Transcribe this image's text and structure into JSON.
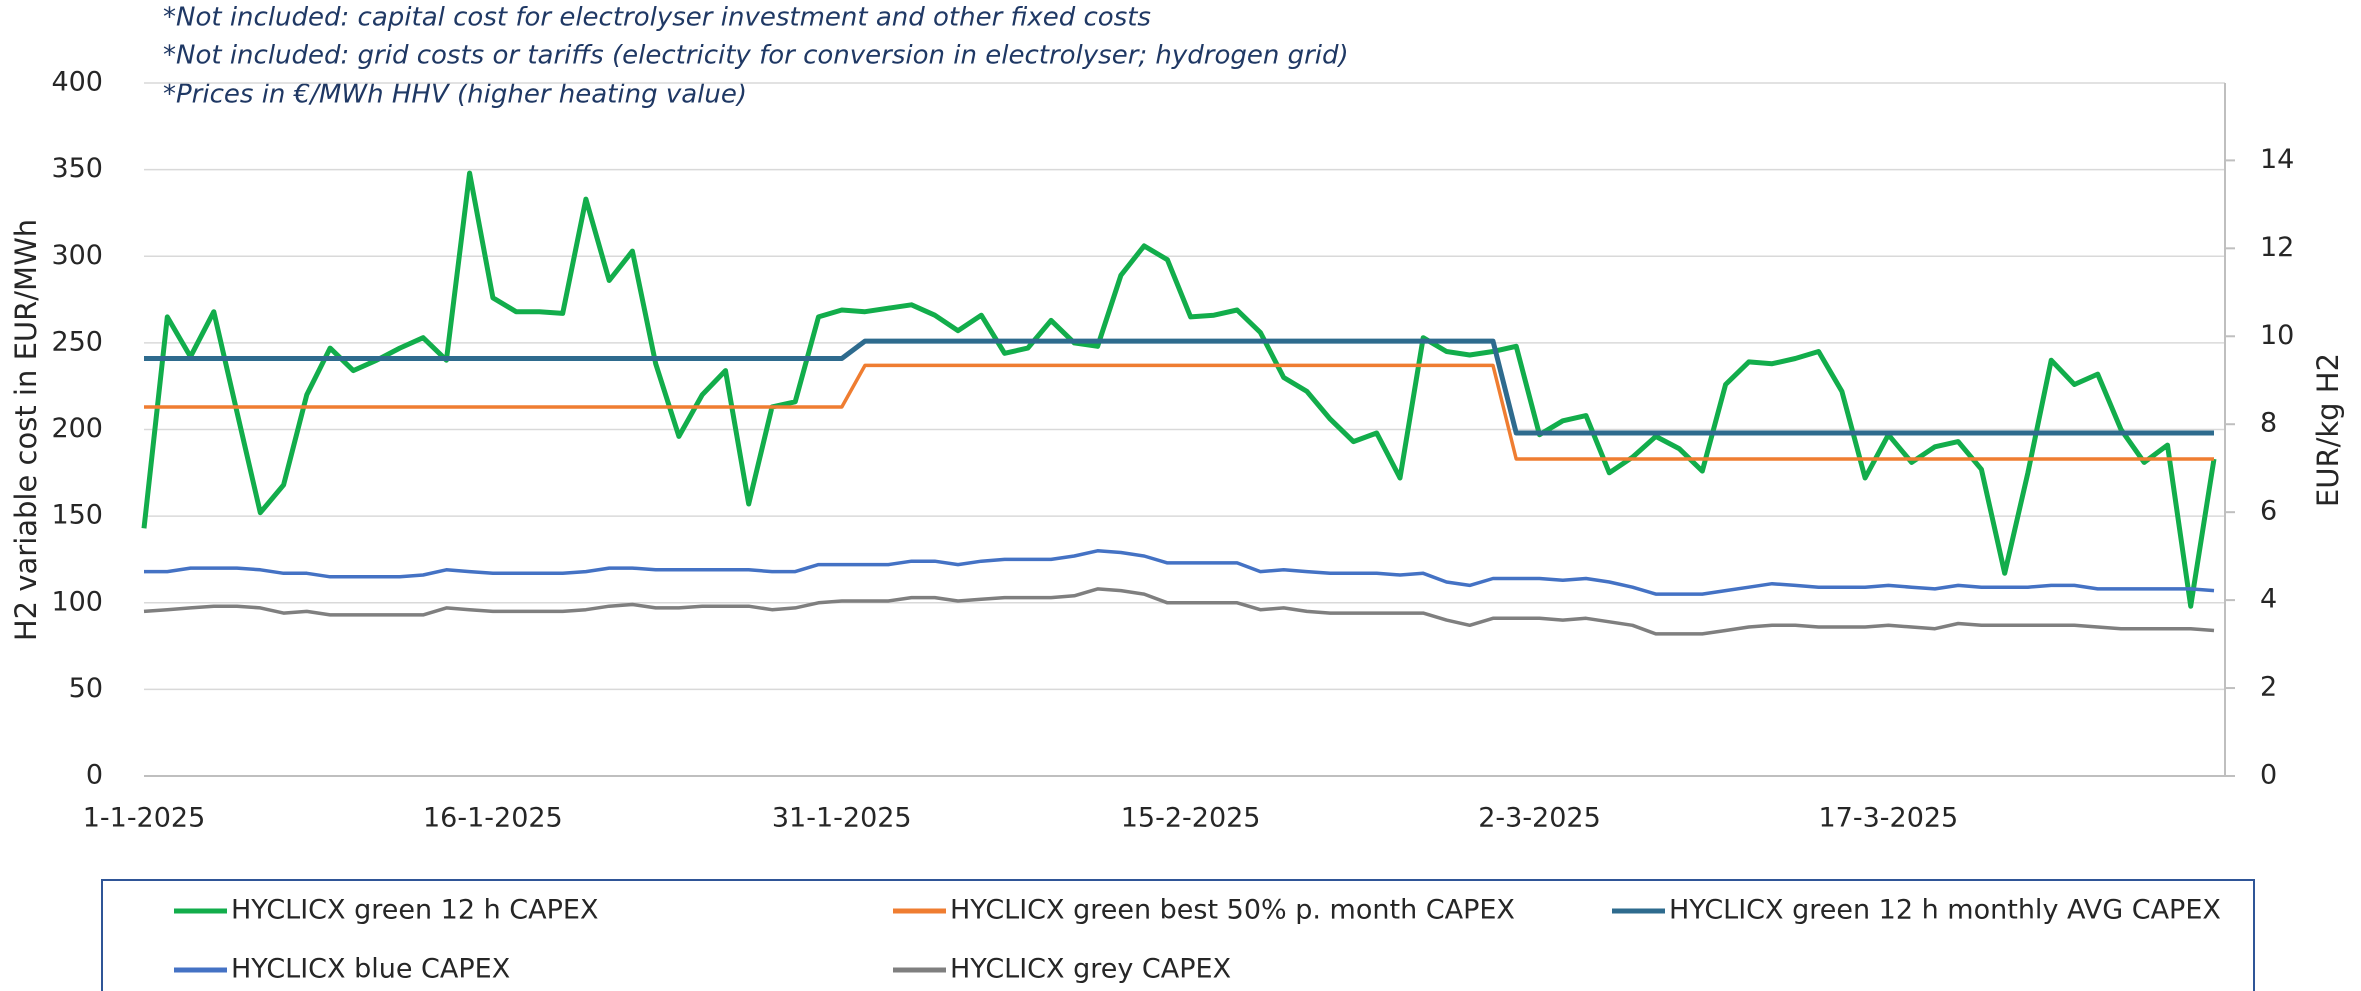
{
  "chart_data": {
    "type": "line",
    "notes": [
      "*Not included: capital cost for electrolyser investment and other fixed costs",
      "*Not included: grid costs or tariffs (electricity for conversion in electrolyser; hydrogen grid)",
      "*Prices in €/MWh HHV (higher heating value)"
    ],
    "ylabel": "H2 variable cost  in EUR/MWh",
    "y2label": "EUR/kg H2",
    "categories": [
      "1-1-2025",
      null,
      null,
      null,
      null,
      null,
      null,
      null,
      null,
      null,
      null,
      null,
      null,
      null,
      null,
      "16-1-2025",
      null,
      null,
      null,
      null,
      null,
      null,
      null,
      null,
      null,
      null,
      null,
      null,
      null,
      null,
      "31-1-2025",
      null,
      null,
      null,
      null,
      null,
      null,
      null,
      null,
      null,
      null,
      null,
      null,
      null,
      null,
      "15-2-2025",
      null,
      null,
      null,
      null,
      null,
      null,
      null,
      null,
      null,
      null,
      null,
      null,
      null,
      null,
      "2-3-2025",
      null,
      null,
      null,
      null,
      null,
      null,
      null,
      null,
      null,
      null,
      null,
      null,
      null,
      null,
      "17-3-2025",
      null,
      null,
      null,
      null,
      null,
      null,
      null,
      null,
      null,
      null,
      null,
      null,
      null,
      null
    ],
    "ylim": [
      0,
      400
    ],
    "yticks": [
      0,
      50,
      100,
      150,
      200,
      250,
      300,
      350,
      400
    ],
    "y2lim": [
      0,
      15.76
    ],
    "y2ticks": [
      0,
      2,
      4,
      6,
      8,
      10,
      12,
      14
    ],
    "grid": true,
    "legend": "bottom",
    "series": [
      {
        "name": "HYCLICX green 12 h CAPEX",
        "color": "#12ad4b",
        "values": [
          143,
          265,
          242,
          268,
          210,
          152,
          168,
          220,
          247,
          234,
          240,
          247,
          253,
          240,
          348,
          276,
          268,
          268,
          267,
          333,
          286,
          303,
          238,
          196,
          220,
          234,
          157,
          213,
          216,
          265,
          269,
          268,
          270,
          272,
          266,
          257,
          266,
          244,
          247,
          263,
          250,
          248,
          289,
          306,
          298,
          265,
          266,
          269,
          256,
          230,
          222,
          206,
          193,
          198,
          172,
          253,
          245,
          243,
          245,
          248,
          197,
          205,
          208,
          175,
          184,
          196,
          189,
          176,
          226,
          239,
          238,
          241,
          245,
          222,
          172,
          197,
          181,
          190,
          193,
          177,
          117,
          175,
          240,
          226,
          232,
          200,
          181,
          191,
          98,
          183
        ]
      },
      {
        "name": "HYCLICX green best 50% p. month CAPEX",
        "color": "#ef7d31",
        "values": [
          213,
          213,
          213,
          213,
          213,
          213,
          213,
          213,
          213,
          213,
          213,
          213,
          213,
          213,
          213,
          213,
          213,
          213,
          213,
          213,
          213,
          213,
          213,
          213,
          213,
          213,
          213,
          213,
          213,
          213,
          213,
          237,
          237,
          237,
          237,
          237,
          237,
          237,
          237,
          237,
          237,
          237,
          237,
          237,
          237,
          237,
          237,
          237,
          237,
          237,
          237,
          237,
          237,
          237,
          237,
          237,
          237,
          237,
          237,
          183,
          183,
          183,
          183,
          183,
          183,
          183,
          183,
          183,
          183,
          183,
          183,
          183,
          183,
          183,
          183,
          183,
          183,
          183,
          183,
          183,
          183,
          183,
          183,
          183,
          183,
          183,
          183,
          183,
          183,
          183
        ]
      },
      {
        "name": "HYCLICX green 12 h monthly AVG CAPEX",
        "color": "#2e6b8e",
        "values": [
          241,
          241,
          241,
          241,
          241,
          241,
          241,
          241,
          241,
          241,
          241,
          241,
          241,
          241,
          241,
          241,
          241,
          241,
          241,
          241,
          241,
          241,
          241,
          241,
          241,
          241,
          241,
          241,
          241,
          241,
          241,
          251,
          251,
          251,
          251,
          251,
          251,
          251,
          251,
          251,
          251,
          251,
          251,
          251,
          251,
          251,
          251,
          251,
          251,
          251,
          251,
          251,
          251,
          251,
          251,
          251,
          251,
          251,
          251,
          198,
          198,
          198,
          198,
          198,
          198,
          198,
          198,
          198,
          198,
          198,
          198,
          198,
          198,
          198,
          198,
          198,
          198,
          198,
          198,
          198,
          198,
          198,
          198,
          198,
          198,
          198,
          198,
          198,
          198,
          198
        ]
      },
      {
        "name": "HYCLICX blue CAPEX",
        "color": "#4472c4",
        "values": [
          118,
          118,
          120,
          120,
          120,
          119,
          117,
          117,
          115,
          115,
          115,
          115,
          116,
          119,
          118,
          117,
          117,
          117,
          117,
          118,
          120,
          120,
          119,
          119,
          119,
          119,
          119,
          118,
          118,
          122,
          122,
          122,
          122,
          124,
          124,
          122,
          124,
          125,
          125,
          125,
          127,
          130,
          129,
          127,
          123,
          123,
          123,
          123,
          118,
          119,
          118,
          117,
          117,
          117,
          116,
          117,
          112,
          110,
          114,
          114,
          114,
          113,
          114,
          112,
          109,
          105,
          105,
          105,
          107,
          109,
          111,
          110,
          109,
          109,
          109,
          110,
          109,
          108,
          110,
          109,
          109,
          109,
          110,
          110,
          108,
          108,
          108,
          108,
          108,
          107
        ]
      },
      {
        "name": "HYCLICX grey CAPEX",
        "color": "#7f7f7f",
        "values": [
          95,
          96,
          97,
          98,
          98,
          97,
          94,
          95,
          93,
          93,
          93,
          93,
          93,
          97,
          96,
          95,
          95,
          95,
          95,
          96,
          98,
          99,
          97,
          97,
          98,
          98,
          98,
          96,
          97,
          100,
          101,
          101,
          101,
          103,
          103,
          101,
          102,
          103,
          103,
          103,
          104,
          108,
          107,
          105,
          100,
          100,
          100,
          100,
          96,
          97,
          95,
          94,
          94,
          94,
          94,
          94,
          90,
          87,
          91,
          91,
          91,
          90,
          91,
          89,
          87,
          82,
          82,
          82,
          84,
          86,
          87,
          87,
          86,
          86,
          86,
          87,
          86,
          85,
          88,
          87,
          87,
          87,
          87,
          87,
          86,
          85,
          85,
          85,
          85,
          84
        ]
      }
    ]
  }
}
